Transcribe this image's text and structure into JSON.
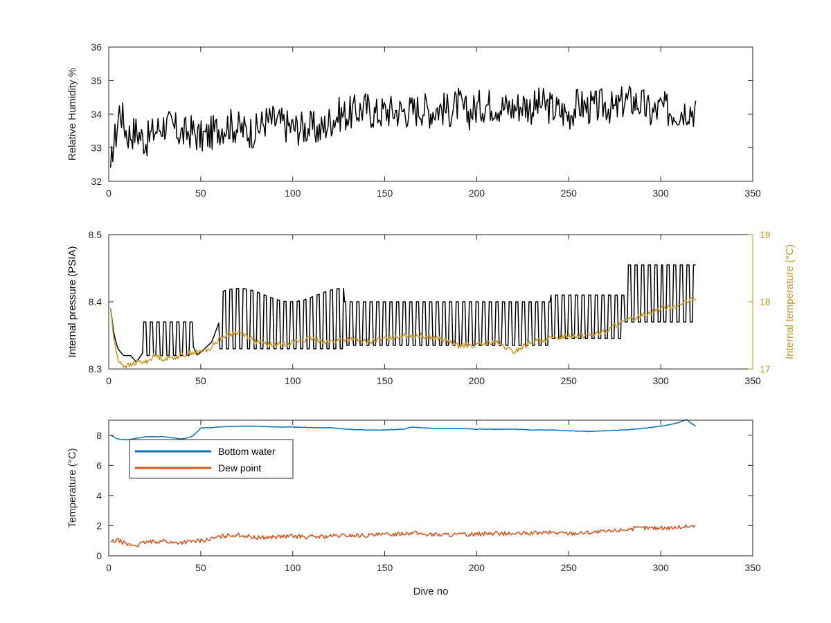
{
  "chart_data": [
    {
      "type": "line",
      "xlim": [
        0,
        350
      ],
      "ylim": [
        32,
        36
      ],
      "xticks": [
        0,
        50,
        100,
        150,
        200,
        250,
        300,
        350
      ],
      "yticks": [
        32,
        33,
        34,
        35,
        36
      ],
      "xlabel": "",
      "ylabel": "Relative Humidity %",
      "grid": false,
      "series": [
        {
          "color": "#000000",
          "x": [
            1,
            2,
            4,
            6,
            10,
            15,
            20,
            25,
            30,
            35,
            40,
            45,
            50,
            55,
            60,
            65,
            70,
            75,
            80,
            85,
            90,
            95,
            100,
            105,
            110,
            115,
            120,
            125,
            130,
            135,
            140,
            145,
            150,
            155,
            160,
            165,
            170,
            175,
            180,
            185,
            190,
            195,
            200,
            205,
            210,
            215,
            220,
            225,
            230,
            235,
            240,
            245,
            250,
            255,
            260,
            265,
            270,
            275,
            280,
            285,
            290,
            295,
            300,
            305,
            310,
            315,
            319
          ],
          "y": [
            32.0,
            33.0,
            33.4,
            34.2,
            33.4,
            33.5,
            33.2,
            33.5,
            33.7,
            33.6,
            33.4,
            33.5,
            33.3,
            33.4,
            33.6,
            33.7,
            33.6,
            33.5,
            33.5,
            33.8,
            33.8,
            33.7,
            33.6,
            33.6,
            33.6,
            33.5,
            33.8,
            34.0,
            34.0,
            34.1,
            34.2,
            34.0,
            34.1,
            34.1,
            34.1,
            34.1,
            34.2,
            34.1,
            34.2,
            34.1,
            34.3,
            34.0,
            34.2,
            34.3,
            34.3,
            34.2,
            34.2,
            34.3,
            34.2,
            34.3,
            34.2,
            34.1,
            34.0,
            34.3,
            34.2,
            34.2,
            34.3,
            34.1,
            34.4,
            34.4,
            34.3,
            34.0,
            34.2,
            34.1,
            34.1,
            34.2,
            34.1
          ]
        }
      ]
    },
    {
      "type": "line",
      "xlim": [
        0,
        350
      ],
      "ylim": [
        8.3,
        8.5
      ],
      "ylim_right": [
        17,
        19
      ],
      "xticks": [
        0,
        50,
        100,
        150,
        200,
        250,
        300,
        350
      ],
      "yticks": [
        8.3,
        8.4,
        8.5
      ],
      "yticks_right": [
        17,
        18,
        19
      ],
      "xlabel": "",
      "ylabel": "Internal pressure (PSIA)",
      "ylabel_right": "Internal temperature (°C)",
      "grid": false,
      "series": [
        {
          "axis": "left",
          "color": "#000000",
          "x": [
            1,
            3,
            5,
            8,
            12,
            15,
            20,
            30,
            40,
            45,
            48,
            52,
            56,
            60,
            70,
            80,
            90,
            100,
            110,
            120,
            125,
            130,
            140,
            150,
            160,
            170,
            180,
            190,
            200,
            210,
            220,
            230,
            240,
            250,
            260,
            270,
            275,
            280,
            290,
            300,
            310,
            319
          ],
          "y": [
            8.39,
            8.35,
            8.33,
            8.32,
            8.32,
            8.31,
            8.33,
            8.35,
            8.35,
            8.34,
            8.32,
            8.33,
            8.34,
            8.37,
            8.37,
            8.38,
            8.37,
            8.37,
            8.37,
            8.37,
            8.36,
            8.36,
            8.36,
            8.36,
            8.36,
            8.36,
            8.35,
            8.36,
            8.36,
            8.36,
            8.36,
            8.36,
            8.36,
            8.37,
            8.37,
            8.37,
            8.38,
            8.39,
            8.4,
            8.4,
            8.41,
            8.41
          ]
        },
        {
          "axis": "right",
          "color": "#C89620",
          "x": [
            1,
            3,
            5,
            8,
            12,
            15,
            20,
            25,
            30,
            40,
            45,
            50,
            55,
            60,
            65,
            70,
            75,
            80,
            90,
            100,
            110,
            120,
            130,
            140,
            150,
            160,
            170,
            180,
            190,
            200,
            210,
            220,
            230,
            240,
            250,
            260,
            270,
            275,
            280,
            290,
            300,
            310,
            319
          ],
          "y": [
            17.9,
            17.4,
            17.15,
            17.05,
            17.05,
            17.1,
            17.1,
            17.2,
            17.15,
            17.2,
            17.25,
            17.25,
            17.3,
            17.45,
            17.5,
            17.55,
            17.5,
            17.4,
            17.35,
            17.4,
            17.45,
            17.4,
            17.45,
            17.4,
            17.45,
            17.5,
            17.5,
            17.45,
            17.35,
            17.35,
            17.4,
            17.25,
            17.4,
            17.45,
            17.5,
            17.5,
            17.55,
            17.65,
            17.7,
            17.8,
            17.9,
            17.95,
            18.05
          ]
        }
      ]
    },
    {
      "type": "line",
      "xlim": [
        0,
        350
      ],
      "ylim": [
        0,
        9
      ],
      "xticks": [
        0,
        50,
        100,
        150,
        200,
        250,
        300,
        350
      ],
      "yticks": [
        0,
        2,
        4,
        6,
        8
      ],
      "xlabel": "Dive no",
      "ylabel": "Temperature (°C)",
      "grid": false,
      "legend": "top-left",
      "series": [
        {
          "name": "Bottom water",
          "color": "#0072BD",
          "x": [
            1,
            5,
            10,
            15,
            20,
            30,
            40,
            45,
            48,
            50,
            55,
            60,
            70,
            80,
            90,
            100,
            110,
            120,
            130,
            140,
            150,
            160,
            165,
            170,
            180,
            190,
            200,
            210,
            220,
            230,
            240,
            250,
            260,
            270,
            280,
            290,
            300,
            305,
            310,
            314,
            316,
            319
          ],
          "y": [
            8.0,
            7.75,
            7.7,
            7.8,
            7.9,
            7.9,
            7.75,
            7.9,
            8.2,
            8.5,
            8.5,
            8.55,
            8.6,
            8.6,
            8.55,
            8.55,
            8.5,
            8.5,
            8.4,
            8.35,
            8.35,
            8.4,
            8.55,
            8.5,
            8.45,
            8.45,
            8.4,
            8.4,
            8.4,
            8.35,
            8.35,
            8.3,
            8.25,
            8.3,
            8.35,
            8.45,
            8.6,
            8.7,
            8.85,
            9.05,
            8.85,
            8.6
          ]
        },
        {
          "name": "Dew point",
          "color": "#D95319",
          "x": [
            1,
            5,
            10,
            15,
            20,
            25,
            30,
            35,
            40,
            45,
            50,
            55,
            60,
            65,
            70,
            75,
            80,
            90,
            100,
            110,
            120,
            130,
            140,
            150,
            160,
            165,
            170,
            180,
            190,
            200,
            210,
            220,
            230,
            240,
            250,
            260,
            270,
            280,
            290,
            300,
            310,
            319
          ],
          "y": [
            0.9,
            1.05,
            0.75,
            0.7,
            0.9,
            0.95,
            1.0,
            0.85,
            0.9,
            0.95,
            1.0,
            1.1,
            1.25,
            1.35,
            1.4,
            1.3,
            1.2,
            1.25,
            1.3,
            1.25,
            1.3,
            1.35,
            1.35,
            1.4,
            1.5,
            1.55,
            1.45,
            1.4,
            1.4,
            1.45,
            1.5,
            1.45,
            1.5,
            1.55,
            1.5,
            1.55,
            1.6,
            1.75,
            1.85,
            1.85,
            1.9,
            2.0
          ]
        }
      ]
    }
  ]
}
